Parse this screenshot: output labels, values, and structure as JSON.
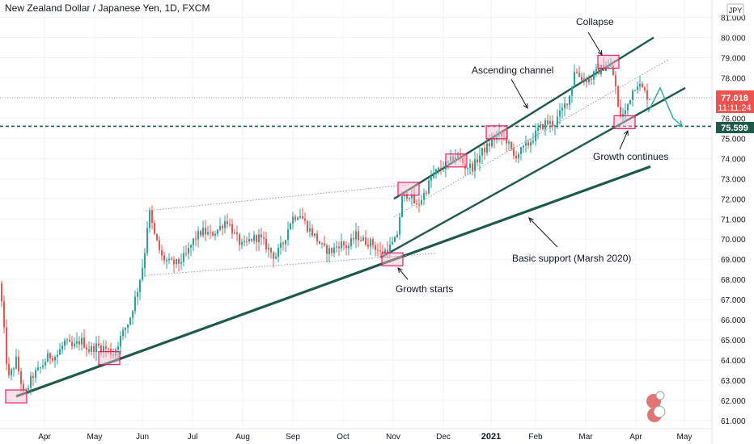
{
  "header": {
    "title": "New Zealand Dollar / Japanese Yen, 1D, FXCM"
  },
  "price_axis": {
    "currency": "JPY",
    "last_price": "77.018",
    "countdown": "11:11:24",
    "marker_level": "75.599"
  },
  "annotations": {
    "collapse": "Collapse",
    "ascending_channel": "Ascending channel",
    "growth_continues": "Growth continues",
    "basic_support": "Basic support (Marsh 2020)",
    "growth_starts": "Growth starts"
  },
  "colors": {
    "up": "#26a69a",
    "down": "#ef5350",
    "trendline": "#1e5a4a",
    "box_fill": "#f8bbd0",
    "box_stroke": "#e91e63",
    "last_price_bg": "#ef5350",
    "marker_bg": "#1e5a4a"
  },
  "chart_data": {
    "type": "candlestick",
    "y_scale": "linear",
    "ylim": [
      60.7,
      81.9
    ],
    "y_ticks": [
      "61.000",
      "62.000",
      "63.000",
      "64.000",
      "65.000",
      "66.000",
      "67.000",
      "68.000",
      "69.000",
      "70.000",
      "71.000",
      "72.000",
      "73.000",
      "74.000",
      "75.000",
      "76.000",
      "77.000",
      "78.000",
      "79.000",
      "80.000",
      "81.000"
    ],
    "x_ticks": [
      "Apr",
      "May",
      "Jun",
      "Jul",
      "Aug",
      "Sep",
      "Oct",
      "Nov",
      "Dec",
      "2021",
      "Feb",
      "Mar",
      "Apr",
      "May"
    ],
    "close_path": [
      [
        0,
        67.8
      ],
      [
        10,
        63.0
      ],
      [
        20,
        64.0
      ],
      [
        30,
        62.2
      ],
      [
        40,
        63.2
      ],
      [
        50,
        63.6
      ],
      [
        60,
        64.2
      ],
      [
        70,
        64.2
      ],
      [
        80,
        64.9
      ],
      [
        90,
        64.6
      ],
      [
        100,
        65.0
      ],
      [
        110,
        64.5
      ],
      [
        120,
        64.7
      ],
      [
        130,
        64.6
      ],
      [
        140,
        64.3
      ],
      [
        150,
        65.2
      ],
      [
        160,
        66.0
      ],
      [
        170,
        67.5
      ],
      [
        178,
        69.0
      ],
      [
        184,
        71.5
      ],
      [
        190,
        70.3
      ],
      [
        200,
        69.1
      ],
      [
        210,
        68.8
      ],
      [
        220,
        68.8
      ],
      [
        230,
        69.2
      ],
      [
        240,
        70.0
      ],
      [
        250,
        70.4
      ],
      [
        260,
        70.2
      ],
      [
        270,
        70.5
      ],
      [
        280,
        71.0
      ],
      [
        290,
        70.2
      ],
      [
        300,
        69.6
      ],
      [
        310,
        70.0
      ],
      [
        320,
        70.1
      ],
      [
        330,
        69.6
      ],
      [
        340,
        69.1
      ],
      [
        350,
        69.8
      ],
      [
        360,
        71.0
      ],
      [
        370,
        71.3
      ],
      [
        380,
        70.6
      ],
      [
        390,
        70.1
      ],
      [
        400,
        69.5
      ],
      [
        410,
        69.4
      ],
      [
        420,
        69.8
      ],
      [
        430,
        69.6
      ],
      [
        440,
        70.2
      ],
      [
        450,
        69.9
      ],
      [
        460,
        69.8
      ],
      [
        470,
        69.3
      ],
      [
        480,
        69.5
      ],
      [
        490,
        70.0
      ],
      [
        497,
        72.0
      ],
      [
        505,
        72.3
      ],
      [
        515,
        71.6
      ],
      [
        525,
        72.3
      ],
      [
        535,
        73.2
      ],
      [
        545,
        73.5
      ],
      [
        555,
        73.8
      ],
      [
        565,
        74.2
      ],
      [
        575,
        73.6
      ],
      [
        585,
        73.6
      ],
      [
        595,
        74.3
      ],
      [
        605,
        74.7
      ],
      [
        615,
        75.2
      ],
      [
        625,
        75.0
      ],
      [
        635,
        74.1
      ],
      [
        645,
        74.4
      ],
      [
        655,
        74.8
      ],
      [
        665,
        75.4
      ],
      [
        675,
        75.8
      ],
      [
        685,
        75.7
      ],
      [
        695,
        76.4
      ],
      [
        705,
        77.2
      ],
      [
        710,
        78.4
      ],
      [
        718,
        78.0
      ],
      [
        728,
        77.9
      ],
      [
        738,
        78.3
      ],
      [
        748,
        78.6
      ],
      [
        755,
        78.5
      ],
      [
        760,
        77.9
      ],
      [
        765,
        76.1
      ],
      [
        772,
        76.2
      ],
      [
        780,
        77.2
      ],
      [
        787,
        77.8
      ],
      [
        793,
        77.5
      ],
      [
        800,
        77.1
      ],
      [
        805,
        77.0
      ]
    ],
    "trendlines": [
      {
        "name": "basic-support",
        "from": [
          20,
          62.2
        ],
        "to": [
          804,
          73.6
        ],
        "weight": "thick"
      },
      {
        "name": "channel-lower",
        "from": [
          471,
          69.1
        ],
        "to": [
          847,
          77.5
        ],
        "weight": "medium"
      },
      {
        "name": "channel-upper",
        "from": [
          487,
          72.0
        ],
        "to": [
          808,
          80.0
        ],
        "weight": "medium"
      },
      {
        "name": "inner-channel",
        "from": [
          487,
          71.1
        ],
        "to": [
          826,
          78.9
        ],
        "weight": "thin"
      },
      {
        "name": "range-top",
        "from": [
          180,
          71.4
        ],
        "to": [
          505,
          72.7
        ],
        "weight": "thin"
      },
      {
        "name": "range-bottom",
        "from": [
          180,
          68.2
        ],
        "to": [
          540,
          69.3
        ],
        "weight": "thin"
      }
    ],
    "levels": [
      77.018,
      75.599
    ],
    "highlight_boxes": [
      [
        20,
        62.2
      ],
      [
        135,
        64.1
      ],
      [
        485,
        69.0
      ],
      [
        505,
        72.5
      ],
      [
        564,
        73.9
      ],
      [
        614,
        75.3
      ],
      [
        752,
        78.8
      ],
      [
        772,
        75.8
      ]
    ],
    "projection": [
      [
        801,
        76.3
      ],
      [
        816,
        77.5
      ],
      [
        832,
        76.0
      ],
      [
        843,
        75.6
      ]
    ]
  }
}
